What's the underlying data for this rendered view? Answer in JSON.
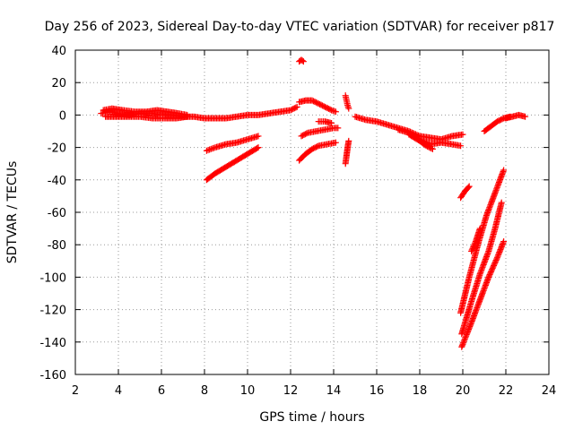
{
  "chart_data": {
    "type": "scatter",
    "title": "Day 256 of 2023, Sidereal Day-to-day VTEC variation (SDTVAR) for receiver p817",
    "xlabel": "GPS time / hours",
    "ylabel": "SDTVAR / TECUs",
    "xlim": [
      2,
      24
    ],
    "ylim": [
      -160,
      40
    ],
    "grid": true,
    "x_ticks": [
      "2",
      "4",
      "6",
      "8",
      "10",
      "12",
      "14",
      "16",
      "18",
      "20",
      "22",
      "24"
    ],
    "y_ticks": [
      "40",
      "20",
      "0",
      "-20",
      "-40",
      "-60",
      "-80",
      "-100",
      "-120",
      "-140",
      "-160"
    ],
    "marker": "+",
    "color": "#ff0000",
    "series": [
      {
        "name": "main-arc-a",
        "points": [
          [
            3.2,
            1
          ],
          [
            3.6,
            2
          ],
          [
            4.0,
            1
          ],
          [
            4.5,
            0
          ],
          [
            5.0,
            1
          ],
          [
            5.5,
            1
          ],
          [
            6.0,
            0
          ],
          [
            6.5,
            0
          ],
          [
            7.0,
            -1
          ],
          [
            7.5,
            -1
          ],
          [
            8.0,
            -2
          ],
          [
            8.5,
            -2
          ],
          [
            9.0,
            -2
          ],
          [
            9.5,
            -1
          ],
          [
            10.0,
            0
          ],
          [
            10.5,
            0
          ],
          [
            11.0,
            1
          ],
          [
            11.5,
            2
          ],
          [
            12.0,
            3
          ],
          [
            12.3,
            5
          ]
        ]
      },
      {
        "name": "main-arc-b",
        "points": [
          [
            3.3,
            3
          ],
          [
            3.7,
            4
          ],
          [
            4.2,
            3
          ],
          [
            4.8,
            2
          ],
          [
            5.3,
            2
          ],
          [
            5.8,
            3
          ],
          [
            6.3,
            2
          ],
          [
            6.8,
            1
          ],
          [
            7.2,
            0
          ]
        ]
      },
      {
        "name": "main-arc-c",
        "points": [
          [
            3.4,
            -1
          ],
          [
            3.9,
            -1
          ],
          [
            4.4,
            -1
          ],
          [
            5.0,
            -1
          ],
          [
            5.6,
            -2
          ],
          [
            6.2,
            -2
          ],
          [
            6.7,
            -2
          ],
          [
            7.2,
            -1
          ]
        ]
      },
      {
        "name": "arc-d",
        "points": [
          [
            12.4,
            8
          ],
          [
            12.7,
            9
          ],
          [
            13.0,
            9
          ],
          [
            13.3,
            7
          ],
          [
            13.6,
            5
          ],
          [
            13.9,
            3
          ],
          [
            14.1,
            2
          ]
        ]
      },
      {
        "name": "arc-e",
        "points": [
          [
            13.3,
            -4
          ],
          [
            13.6,
            -4
          ],
          [
            13.9,
            -5
          ]
        ]
      },
      {
        "name": "arc-f",
        "points": [
          [
            12.5,
            -13
          ],
          [
            12.8,
            -11
          ],
          [
            13.2,
            -10
          ],
          [
            13.6,
            -9
          ],
          [
            14.0,
            -8
          ],
          [
            14.2,
            -8
          ]
        ]
      },
      {
        "name": "arc-g",
        "points": [
          [
            12.4,
            -28
          ],
          [
            12.7,
            -24
          ],
          [
            13.0,
            -21
          ],
          [
            13.3,
            -19
          ],
          [
            13.7,
            -18
          ],
          [
            14.1,
            -17
          ]
        ]
      },
      {
        "name": "arc-h",
        "points": [
          [
            8.1,
            -22
          ],
          [
            8.5,
            -20
          ],
          [
            9.0,
            -18
          ],
          [
            9.5,
            -17
          ],
          [
            10.0,
            -15
          ],
          [
            10.5,
            -13
          ]
        ]
      },
      {
        "name": "arc-i",
        "points": [
          [
            8.1,
            -40
          ],
          [
            8.5,
            -36
          ],
          [
            9.0,
            -32
          ],
          [
            9.5,
            -28
          ],
          [
            10.0,
            -24
          ],
          [
            10.5,
            -20
          ]
        ]
      },
      {
        "name": "arc-j",
        "points": [
          [
            12.4,
            33
          ],
          [
            12.5,
            34
          ],
          [
            12.6,
            33
          ]
        ]
      },
      {
        "name": "arc-k",
        "points": [
          [
            14.55,
            12
          ],
          [
            14.6,
            9
          ],
          [
            14.65,
            6
          ],
          [
            14.7,
            4
          ]
        ]
      },
      {
        "name": "arc-l",
        "points": [
          [
            14.55,
            -30
          ],
          [
            14.6,
            -25
          ],
          [
            14.65,
            -20
          ],
          [
            14.7,
            -16
          ]
        ]
      },
      {
        "name": "arc-m",
        "points": [
          [
            15.0,
            -1
          ],
          [
            15.5,
            -3
          ],
          [
            16.0,
            -4
          ],
          [
            16.5,
            -6
          ],
          [
            17.0,
            -8
          ],
          [
            17.5,
            -10
          ],
          [
            18.0,
            -13
          ],
          [
            18.5,
            -14
          ],
          [
            19.0,
            -15
          ],
          [
            19.5,
            -13
          ],
          [
            20.0,
            -12
          ]
        ]
      },
      {
        "name": "arc-n",
        "points": [
          [
            17.0,
            -9
          ],
          [
            17.5,
            -11
          ],
          [
            18.0,
            -15
          ],
          [
            18.5,
            -18
          ],
          [
            19.0,
            -17
          ],
          [
            19.5,
            -18
          ],
          [
            19.9,
            -19
          ]
        ]
      },
      {
        "name": "arc-o",
        "points": [
          [
            17.5,
            -12
          ],
          [
            18.0,
            -16
          ],
          [
            18.3,
            -19
          ],
          [
            18.6,
            -21
          ]
        ]
      },
      {
        "name": "arc-p",
        "points": [
          [
            19.9,
            -51
          ],
          [
            20.1,
            -47
          ],
          [
            20.3,
            -44
          ]
        ]
      },
      {
        "name": "arc-q",
        "points": [
          [
            21.0,
            -10
          ],
          [
            21.3,
            -7
          ],
          [
            21.6,
            -4
          ],
          [
            21.9,
            -2
          ],
          [
            22.2,
            -1
          ]
        ]
      },
      {
        "name": "arc-r",
        "points": [
          [
            22.0,
            -2
          ],
          [
            22.3,
            -1
          ],
          [
            22.6,
            0
          ],
          [
            22.9,
            -1
          ]
        ]
      },
      {
        "name": "arc-s",
        "points": [
          [
            19.9,
            -122
          ],
          [
            20.3,
            -100
          ],
          [
            20.7,
            -80
          ],
          [
            21.1,
            -62
          ],
          [
            21.5,
            -48
          ],
          [
            21.9,
            -34
          ]
        ]
      },
      {
        "name": "arc-t",
        "points": [
          [
            19.95,
            -135
          ],
          [
            20.4,
            -115
          ],
          [
            20.8,
            -98
          ],
          [
            21.2,
            -84
          ],
          [
            21.5,
            -70
          ],
          [
            21.8,
            -54
          ]
        ]
      },
      {
        "name": "arc-u",
        "points": [
          [
            19.95,
            -143
          ],
          [
            20.4,
            -128
          ],
          [
            20.8,
            -114
          ],
          [
            21.2,
            -100
          ],
          [
            21.6,
            -88
          ],
          [
            21.9,
            -78
          ]
        ]
      },
      {
        "name": "arc-v",
        "points": [
          [
            20.4,
            -84
          ],
          [
            20.6,
            -78
          ],
          [
            20.8,
            -70
          ]
        ]
      }
    ]
  }
}
